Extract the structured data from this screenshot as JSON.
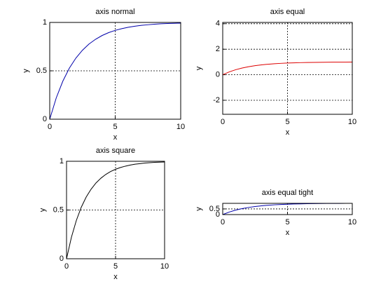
{
  "chart_data": [
    {
      "type": "line",
      "title": "axis normal",
      "xlabel": "x",
      "ylabel": "y",
      "xlim": [
        0,
        10
      ],
      "ylim": [
        0,
        1
      ],
      "xticks": [
        0,
        5,
        10
      ],
      "yticks": [
        0,
        0.5,
        1
      ],
      "grid": true,
      "x": [
        0,
        0.5,
        1,
        1.5,
        2,
        2.5,
        3,
        3.5,
        4,
        4.5,
        5,
        5.5,
        6,
        6.5,
        7,
        7.5,
        8,
        8.5,
        9,
        9.5,
        10
      ],
      "series": [
        {
          "color": "#0000aa",
          "values": [
            0,
            0.221,
            0.393,
            0.528,
            0.632,
            0.713,
            0.777,
            0.826,
            0.865,
            0.895,
            0.918,
            0.936,
            0.95,
            0.961,
            0.97,
            0.976,
            0.982,
            0.986,
            0.989,
            0.991,
            0.993
          ]
        }
      ]
    },
    {
      "type": "line",
      "title": "axis equal",
      "xlabel": "x",
      "ylabel": "y",
      "xlim": [
        0,
        10
      ],
      "ylim": [
        -3.1,
        4.1
      ],
      "xticks": [
        0,
        5,
        10
      ],
      "yticks": [
        -2,
        0,
        2,
        4
      ],
      "grid": true,
      "x": [
        0,
        0.5,
        1,
        1.5,
        2,
        2.5,
        3,
        3.5,
        4,
        4.5,
        5,
        5.5,
        6,
        6.5,
        7,
        7.5,
        8,
        8.5,
        9,
        9.5,
        10
      ],
      "series": [
        {
          "color": "#dd0000",
          "values": [
            0,
            0.221,
            0.393,
            0.528,
            0.632,
            0.713,
            0.777,
            0.826,
            0.865,
            0.895,
            0.918,
            0.936,
            0.95,
            0.961,
            0.97,
            0.976,
            0.982,
            0.986,
            0.989,
            0.991,
            0.993
          ]
        }
      ]
    },
    {
      "type": "line",
      "title": "axis square",
      "xlabel": "x",
      "ylabel": "y",
      "xlim": [
        0,
        10
      ],
      "ylim": [
        0,
        1
      ],
      "xticks": [
        0,
        5,
        10
      ],
      "yticks": [
        0,
        0.5,
        1
      ],
      "grid": true,
      "x": [
        0,
        0.5,
        1,
        1.5,
        2,
        2.5,
        3,
        3.5,
        4,
        4.5,
        5,
        5.5,
        6,
        6.5,
        7,
        7.5,
        8,
        8.5,
        9,
        9.5,
        10
      ],
      "series": [
        {
          "color": "#000000",
          "values": [
            0,
            0.221,
            0.393,
            0.528,
            0.632,
            0.713,
            0.777,
            0.826,
            0.865,
            0.895,
            0.918,
            0.936,
            0.95,
            0.961,
            0.97,
            0.976,
            0.982,
            0.986,
            0.989,
            0.991,
            0.993
          ]
        }
      ]
    },
    {
      "type": "line",
      "title": "axis equal tight",
      "xlabel": "x",
      "ylabel": "y",
      "xlim": [
        0,
        10
      ],
      "ylim": [
        0,
        0.993
      ],
      "xticks": [
        0,
        5,
        10
      ],
      "yticks": [
        0,
        0.5
      ],
      "grid": true,
      "x": [
        0,
        0.5,
        1,
        1.5,
        2,
        2.5,
        3,
        3.5,
        4,
        4.5,
        5,
        5.5,
        6,
        6.5,
        7,
        7.5,
        8,
        8.5,
        9,
        9.5,
        10
      ],
      "series": [
        {
          "color": "#0000aa",
          "values": [
            0,
            0.221,
            0.393,
            0.528,
            0.632,
            0.713,
            0.777,
            0.826,
            0.865,
            0.895,
            0.918,
            0.936,
            0.95,
            0.961,
            0.97,
            0.976,
            0.982,
            0.986,
            0.989,
            0.991,
            0.993
          ]
        }
      ]
    }
  ]
}
